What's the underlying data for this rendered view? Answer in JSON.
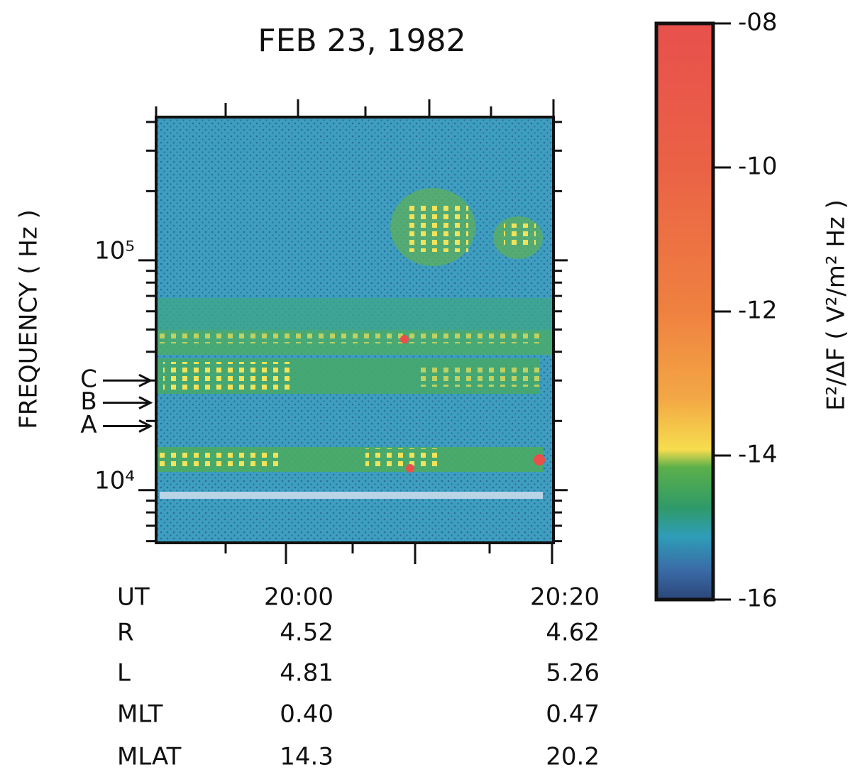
{
  "chart_data": {
    "type": "spectrogram",
    "title": "FEB 23, 1982",
    "y_label": "FREQUENCY ( Hz )",
    "ylog": true,
    "ylim": [
      5900,
      420000
    ],
    "yticks": [
      {
        "value": 10000,
        "label": "10⁴"
      },
      {
        "value": 100000,
        "label": "10⁵"
      }
    ],
    "yminorticks": [
      6000,
      7000,
      8000,
      9000,
      20000,
      30000,
      40000,
      50000,
      60000,
      70000,
      80000,
      90000,
      200000,
      300000,
      400000
    ],
    "annotations": [
      {
        "text": "C",
        "y": 30000
      },
      {
        "text": "B",
        "y": 24000
      },
      {
        "text": "A",
        "y": 19000
      }
    ],
    "colorbar": {
      "label": "E²/ΔF ( V²/m² Hz )",
      "clim": [
        -16,
        -8
      ],
      "ticks": [
        {
          "value": -8,
          "label": "-08"
        },
        {
          "value": -10,
          "label": "-10"
        },
        {
          "value": -12,
          "label": "-12"
        },
        {
          "value": -14,
          "label": "-14"
        },
        {
          "value": -16,
          "label": "-16"
        }
      ]
    },
    "ephemeris": [
      {
        "label": "UT",
        "start": "20:00",
        "end": "20:20"
      },
      {
        "label": "R",
        "start": 4.52,
        "end": 4.62
      },
      {
        "label": "L",
        "start": 4.81,
        "end": 5.26
      },
      {
        "label": "MLT",
        "start": "0.40",
        "end": "0.47"
      },
      {
        "label": "MLAT",
        "start": 14.3,
        "end": 20.2
      }
    ]
  }
}
